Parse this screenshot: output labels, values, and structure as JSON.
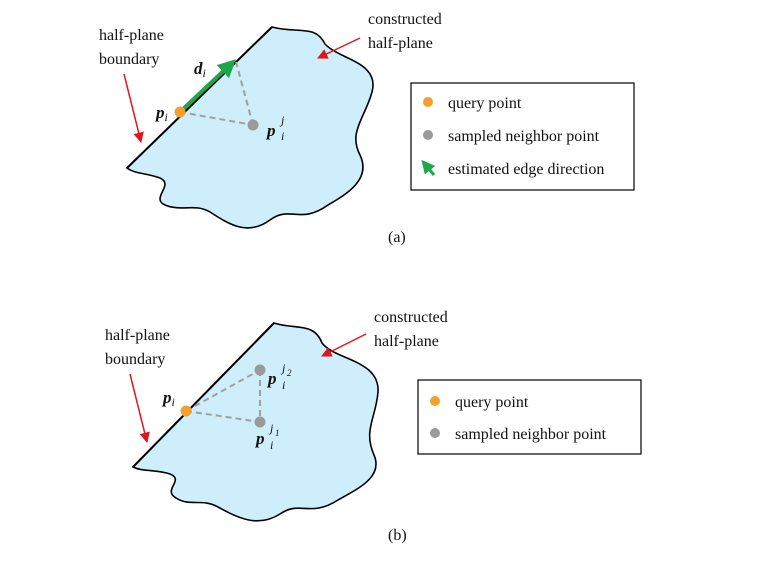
{
  "colors": {
    "region_fill": "#cdeefa",
    "outline": "#000000",
    "query_point": "#f4a030",
    "neighbor_point": "#9a9a9a",
    "edge_arrow": "#1fa64a",
    "pointer_arrow": "#e0161c",
    "dashed": "#a0a0a0"
  },
  "panel_a": {
    "constructed_label": [
      "constructed",
      "half-plane"
    ],
    "boundary_label": [
      "half-plane",
      "boundary"
    ],
    "p_i": {
      "base": "p",
      "sub": "i"
    },
    "d_i": {
      "base": "d",
      "sub": "i"
    },
    "p_i_j": {
      "base": "p",
      "sub": "i",
      "sup": "j"
    },
    "legend": [
      {
        "icon": "orange-dot-icon",
        "label": "query point"
      },
      {
        "icon": "gray-dot-icon",
        "label": "sampled neighbor point"
      },
      {
        "icon": "green-arrow-icon",
        "label": "estimated edge direction"
      }
    ],
    "caption": "(a)"
  },
  "panel_b": {
    "constructed_label": [
      "constructed",
      "half-plane"
    ],
    "boundary_label": [
      "half-plane",
      "boundary"
    ],
    "p_i": {
      "base": "p",
      "sub": "i"
    },
    "p_i_j2": {
      "base": "p",
      "sub": "i",
      "sup": "j",
      "supsub": "2"
    },
    "p_i_j1": {
      "base": "p",
      "sub": "i",
      "sup": "j",
      "supsub": "1"
    },
    "legend": [
      {
        "icon": "orange-dot-icon",
        "label": "query point"
      },
      {
        "icon": "gray-dot-icon",
        "label": "sampled neighbor point"
      }
    ],
    "caption": "(b)"
  }
}
